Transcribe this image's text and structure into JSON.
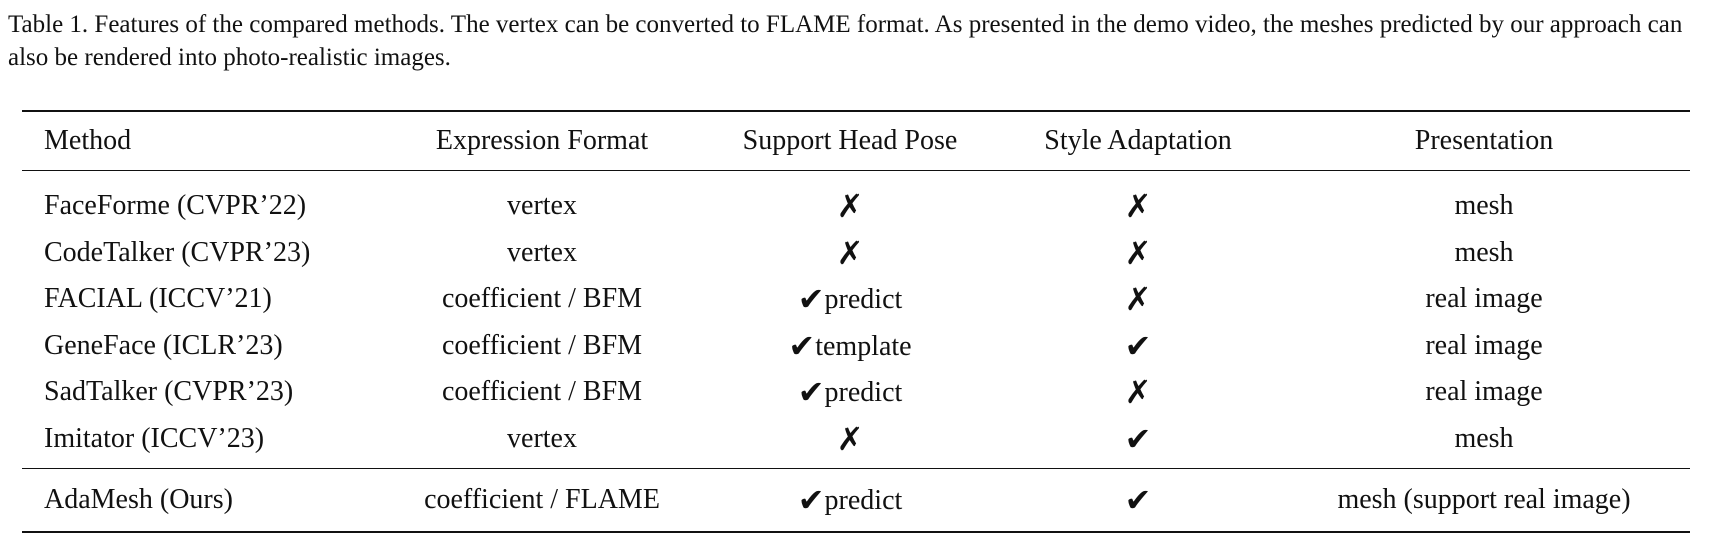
{
  "caption": "Table 1. Features of the compared methods. The vertex can be converted to FLAME format. As presented in the demo video, the meshes predicted by our approach can also be rendered into photo-realistic images.",
  "table": {
    "headers": [
      "Method",
      "Expression Format",
      "Support Head Pose",
      "Style Adaptation",
      "Presentation"
    ],
    "rows": [
      {
        "method": "FaceForme (CVPR’22)",
        "format": "vertex",
        "pose_mark": "✗",
        "pose_text": "",
        "style_mark": "✗",
        "presentation": "mesh"
      },
      {
        "method": "CodeTalker (CVPR’23)",
        "format": "vertex",
        "pose_mark": "✗",
        "pose_text": "",
        "style_mark": "✗",
        "presentation": "mesh"
      },
      {
        "method": "FACIAL (ICCV’21)",
        "format": "coefficient / BFM",
        "pose_mark": "✔",
        "pose_text": "predict",
        "style_mark": "✗",
        "presentation": "real image"
      },
      {
        "method": "GeneFace (ICLR’23)",
        "format": "coefficient / BFM",
        "pose_mark": "✔",
        "pose_text": "template",
        "style_mark": "✔",
        "presentation": "real image"
      },
      {
        "method": "SadTalker (CVPR’23)",
        "format": "coefficient / BFM",
        "pose_mark": "✔",
        "pose_text": "predict",
        "style_mark": "✗",
        "presentation": "real image"
      },
      {
        "method": "Imitator (ICCV’23)",
        "format": "vertex",
        "pose_mark": "✗",
        "pose_text": "",
        "style_mark": "✔",
        "presentation": "mesh"
      }
    ],
    "ours": {
      "method": "AdaMesh (Ours)",
      "format": "coefficient / FLAME",
      "pose_mark": "✔",
      "pose_text": "predict",
      "style_mark": "✔",
      "presentation": "mesh (support real image)"
    }
  }
}
